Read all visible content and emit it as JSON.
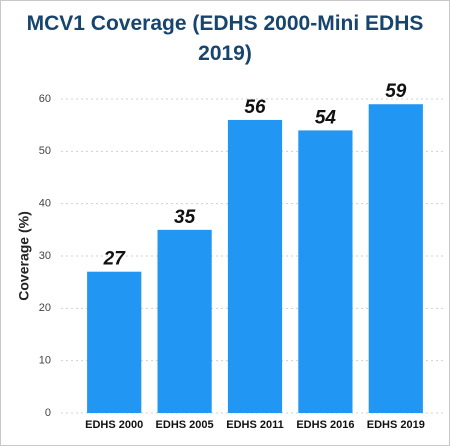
{
  "chart_data": {
    "type": "bar",
    "title": "MCV1 Coverage (EDHS 2000-Mini EDHS 2019)",
    "y_label": "Coverage (%)",
    "categories": [
      "EDHS 2000",
      "EDHS 2005",
      "EDHS 2011",
      "EDHS 2016",
      "EDHS 2019"
    ],
    "values": [
      27,
      35,
      56,
      54,
      59
    ],
    "color": "#2196f3",
    "ylim": [
      0,
      60
    ],
    "yticks": [
      0,
      10,
      20,
      30,
      40,
      50,
      60
    ],
    "grid": true
  }
}
